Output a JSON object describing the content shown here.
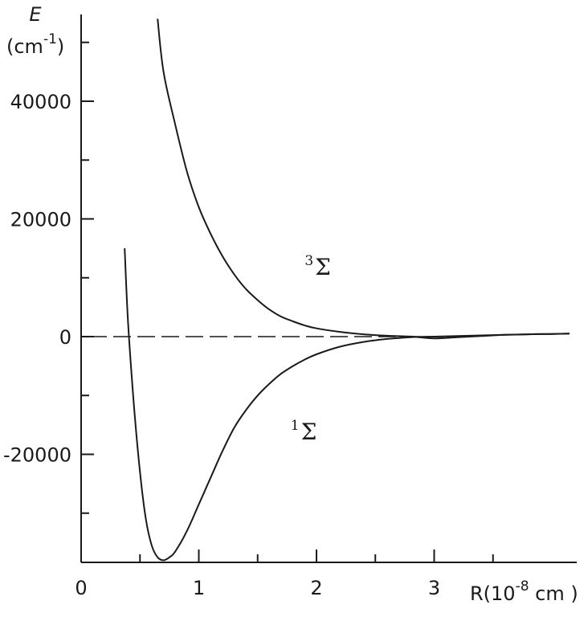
{
  "chart_data": {
    "type": "line",
    "title": "",
    "ylabel": "E",
    "ylabel_unit": "(cm",
    "ylabel_unit_sup": "-1",
    "ylabel_unit_close": ")",
    "xlabel": "R(10",
    "xlabel_sup": "-8",
    "xlabel_close": "cm )",
    "xlim": [
      0,
      4.2
    ],
    "ylim": [
      -38000,
      54000
    ],
    "x_ticks": [
      {
        "value": 0,
        "label": "0"
      },
      {
        "value": 1,
        "label": "1"
      },
      {
        "value": 2,
        "label": "2"
      },
      {
        "value": 3,
        "label": "3"
      }
    ],
    "x_minor_ticks": [
      0.5,
      1.5,
      2.5,
      3.5
    ],
    "y_ticks": [
      {
        "value": 40000,
        "label": "40000"
      },
      {
        "value": 20000,
        "label": "20000"
      },
      {
        "value": 0,
        "label": "0"
      },
      {
        "value": -20000,
        "label": "-20000"
      }
    ],
    "y_minor_ticks": [
      50000,
      30000,
      10000,
      -10000,
      -30000
    ],
    "zero_line": {
      "y": 0,
      "x_range": [
        0,
        3.1
      ],
      "style": "dash-dot"
    },
    "series": [
      {
        "name": "Σ",
        "name_sup": "3",
        "label_at": [
          1.9,
          10500
        ],
        "x": [
          0.65,
          0.7,
          0.8,
          0.9,
          1.0,
          1.1,
          1.2,
          1.3,
          1.4,
          1.5,
          1.6,
          1.7,
          1.8,
          1.9,
          2.0,
          2.2,
          2.4,
          2.6,
          2.8,
          3.0,
          3.2,
          3.4,
          3.6,
          3.8,
          4.0,
          4.15
        ],
        "y": [
          54000,
          45000,
          36000,
          28000,
          22000,
          17500,
          13700,
          10600,
          8100,
          6200,
          4600,
          3400,
          2600,
          1900,
          1400,
          800,
          400,
          150,
          20,
          -300,
          -100,
          100,
          300,
          400,
          450,
          500
        ]
      },
      {
        "name": "Σ",
        "name_sup": "1",
        "label_at": [
          1.78,
          -17500
        ],
        "x": [
          0.37,
          0.4,
          0.45,
          0.5,
          0.55,
          0.6,
          0.65,
          0.7,
          0.75,
          0.8,
          0.9,
          1.0,
          1.1,
          1.2,
          1.3,
          1.4,
          1.5,
          1.6,
          1.7,
          1.8,
          1.9,
          2.0,
          2.2,
          2.4,
          2.6,
          2.8,
          3.0,
          3.2,
          3.4,
          3.6,
          3.8,
          4.0,
          4.15
        ],
        "y": [
          15000,
          2000,
          -12000,
          -23000,
          -31000,
          -35500,
          -37500,
          -38000,
          -37500,
          -36500,
          -33000,
          -28500,
          -24000,
          -19500,
          -15500,
          -12500,
          -10000,
          -8000,
          -6300,
          -5000,
          -3900,
          -3000,
          -1700,
          -900,
          -400,
          -100,
          0,
          100,
          200,
          300,
          400,
          450,
          500
        ]
      }
    ]
  }
}
